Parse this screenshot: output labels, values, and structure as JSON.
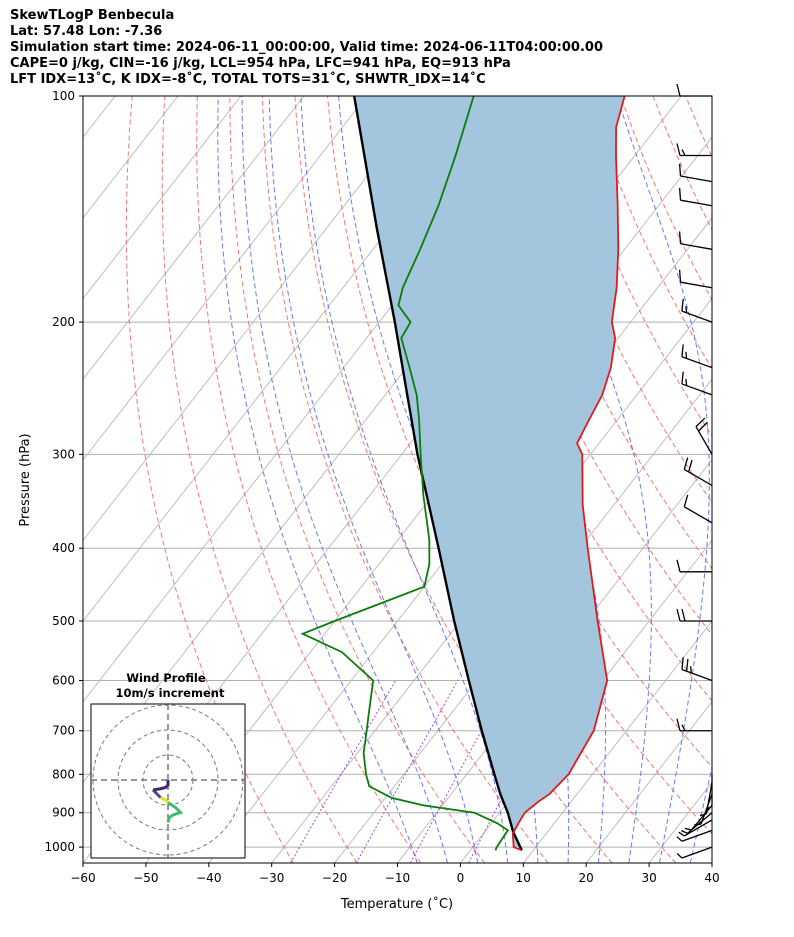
{
  "header": {
    "line1": "SkewTLogP Benbecula",
    "line2": "Lat: 57.48   Lon: -7.36",
    "line3": "Simulation start time: 2024-06-11_00:00:00, Valid time: 2024-06-11T04:00:00.00",
    "line4": "CAPE=0 j/kg, CIN=-16 j/kg, LCL=954 hPa, LFC=941 hPa, EQ=913 hPa",
    "line5": "LFT IDX=13˚C, K IDX=-8˚C, TOTAL TOTS=31˚C, SHWTR_IDX=14˚C"
  },
  "chart_data": {
    "type": "line",
    "subtype": "skew-t log-p",
    "xlabel": "Temperature (˚C)",
    "ylabel": "Pressure (hPa)",
    "xlim": [
      -60,
      40
    ],
    "ylim": [
      1050,
      100
    ],
    "yscale": "log",
    "xticks": [
      -60,
      -50,
      -40,
      -30,
      -20,
      -10,
      0,
      10,
      20,
      30,
      40
    ],
    "yticks": [
      100,
      200,
      300,
      400,
      500,
      600,
      700,
      800,
      900,
      1000
    ],
    "grid": true,
    "colors": {
      "temperature": "#e11b1b",
      "dewpoint": "#0a7d0a",
      "parcel": "#000000",
      "cape_fill": "#a3c6de",
      "dry_adiabats": "#f06060",
      "moist_adiabats": "#5a6cf0",
      "isotherms": "#b8b8b8",
      "mixing_ratio": "#9a55cc"
    },
    "series": [
      {
        "key": "temperature",
        "points": [
          [
            1010,
            8.2
          ],
          [
            1000,
            6.5
          ],
          [
            960,
            4.7
          ],
          [
            930,
            4.3
          ],
          [
            900,
            4.0
          ],
          [
            870,
            4.8
          ],
          [
            850,
            5.6
          ],
          [
            800,
            6.2
          ],
          [
            700,
            4.8
          ],
          [
            600,
            0.7
          ],
          [
            500,
            -8.2
          ],
          [
            450,
            -13.2
          ],
          [
            400,
            -18.8
          ],
          [
            350,
            -25.0
          ],
          [
            300,
            -31.3
          ],
          [
            290,
            -33.5
          ],
          [
            270,
            -34.5
          ],
          [
            250,
            -35.5
          ],
          [
            230,
            -37.5
          ],
          [
            210,
            -40.5
          ],
          [
            200,
            -43.0
          ],
          [
            180,
            -46.5
          ],
          [
            160,
            -51.0
          ],
          [
            140,
            -56.5
          ],
          [
            120,
            -63.0
          ],
          [
            110,
            -66.5
          ],
          [
            100,
            -69.0
          ]
        ]
      },
      {
        "key": "dewpoint",
        "points": [
          [
            1010,
            4.0
          ],
          [
            1000,
            3.8
          ],
          [
            950,
            3.5
          ],
          [
            930,
            1.0
          ],
          [
            900,
            -4.0
          ],
          [
            880,
            -13.0
          ],
          [
            860,
            -19.0
          ],
          [
            830,
            -24.0
          ],
          [
            800,
            -26.0
          ],
          [
            750,
            -29.0
          ],
          [
            700,
            -31.3
          ],
          [
            670,
            -32.8
          ],
          [
            600,
            -36.5
          ],
          [
            550,
            -45.0
          ],
          [
            520,
            -53.5
          ],
          [
            500,
            -50.0
          ],
          [
            450,
            -40.0
          ],
          [
            420,
            -42.0
          ],
          [
            390,
            -45.0
          ],
          [
            340,
            -51.5
          ],
          [
            300,
            -57.0
          ],
          [
            270,
            -61.5
          ],
          [
            250,
            -65.0
          ],
          [
            230,
            -69.5
          ],
          [
            210,
            -74.5
          ],
          [
            200,
            -75.0
          ],
          [
            190,
            -79.0
          ],
          [
            180,
            -80.5
          ],
          [
            160,
            -82.5
          ],
          [
            140,
            -85.0
          ],
          [
            120,
            -88.5
          ],
          [
            100,
            -93.0
          ]
        ]
      },
      {
        "key": "parcel",
        "points": [
          [
            1010,
            8.2
          ],
          [
            954,
            4.5
          ],
          [
            900,
            1.3
          ],
          [
            850,
            -2.2
          ],
          [
            800,
            -5.6
          ],
          [
            700,
            -13.0
          ],
          [
            600,
            -21.3
          ],
          [
            500,
            -31.0
          ],
          [
            400,
            -42.5
          ],
          [
            300,
            -57.5
          ],
          [
            250,
            -66.5
          ],
          [
            200,
            -77.5
          ],
          [
            150,
            -92.0
          ],
          [
            100,
            -112.0
          ]
        ]
      }
    ],
    "wind_barbs": [
      {
        "p": 1000,
        "dir": 250,
        "speed": 8
      },
      {
        "p": 950,
        "dir": 250,
        "speed": 8
      },
      {
        "p": 920,
        "dir": 240,
        "speed": 8
      },
      {
        "p": 900,
        "dir": 230,
        "speed": 8
      },
      {
        "p": 880,
        "dir": 220,
        "speed": 7
      },
      {
        "p": 850,
        "dir": 200,
        "speed": 8
      },
      {
        "p": 820,
        "dir": 190,
        "speed": 8
      },
      {
        "p": 800,
        "dir": 180,
        "speed": 6
      },
      {
        "p": 700,
        "dir": 270,
        "speed": 15
      },
      {
        "p": 600,
        "dir": 290,
        "speed": 25
      },
      {
        "p": 500,
        "dir": 270,
        "speed": 20
      },
      {
        "p": 430,
        "dir": 270,
        "speed": 10
      },
      {
        "p": 370,
        "dir": 300,
        "speed": 10
      },
      {
        "p": 330,
        "dir": 300,
        "speed": 20
      },
      {
        "p": 300,
        "dir": 330,
        "speed": 20
      },
      {
        "p": 250,
        "dir": 290,
        "speed": 15
      },
      {
        "p": 230,
        "dir": 290,
        "speed": 15
      },
      {
        "p": 200,
        "dir": 290,
        "speed": 15
      },
      {
        "p": 180,
        "dir": 280,
        "speed": 10
      },
      {
        "p": 160,
        "dir": 280,
        "speed": 10
      },
      {
        "p": 140,
        "dir": 280,
        "speed": 10
      },
      {
        "p": 130,
        "dir": 280,
        "speed": 10
      },
      {
        "p": 120,
        "dir": 270,
        "speed": 15
      },
      {
        "p": 100,
        "dir": 270,
        "speed": 10
      }
    ],
    "hodograph": {
      "title": "Wind Profile",
      "subtitle": "10m/s increment",
      "rings": [
        10,
        20,
        30
      ],
      "segments": [
        {
          "color": "#3dbb70",
          "points": [
            [
              0,
              -5
            ],
            [
              0.5,
              -3
            ],
            [
              2,
              -2
            ],
            [
              5,
              -1
            ],
            [
              3,
              1
            ],
            [
              0,
              3
            ]
          ]
        },
        {
          "color": "#e6e020",
          "points": [
            [
              0,
              3
            ],
            [
              -1,
              4
            ],
            [
              -3,
              5
            ]
          ]
        },
        {
          "color": "#3b4f8c",
          "points": [
            [
              -3,
              5
            ],
            [
              -5,
              7
            ],
            [
              -6,
              8
            ]
          ]
        },
        {
          "color": "#46276e",
          "points": [
            [
              -6,
              8
            ],
            [
              -3,
              8.5
            ],
            [
              -1,
              9
            ],
            [
              0,
              10
            ],
            [
              0,
              12
            ]
          ]
        }
      ]
    }
  }
}
